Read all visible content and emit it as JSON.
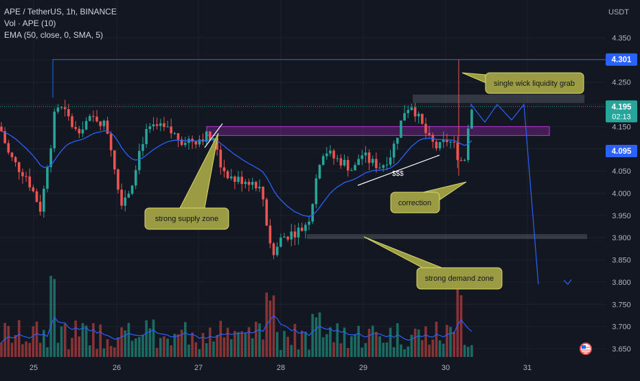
{
  "header": {
    "title": "APE / TetherUS, 1h, BINANCE",
    "indicator_volume": "Vol · APE (10)",
    "indicator_ema": "EMA (50, close, 0, SMA, 5)"
  },
  "price_axis": {
    "currency": "USDT",
    "ticks": [
      "4.350",
      "4.300",
      "4.250",
      "4.200",
      "4.150",
      "4.100",
      "4.050",
      "4.000",
      "3.950",
      "3.900",
      "3.850",
      "3.800",
      "3.750",
      "3.700",
      "3.650"
    ]
  },
  "time_axis": {
    "ticks": [
      "25",
      "26",
      "27",
      "28",
      "29",
      "30",
      "31"
    ]
  },
  "price_labels": {
    "high": "4.301",
    "last": "4.195",
    "countdown": "02:13",
    "ema": "4.095"
  },
  "annotations": {
    "wick": "single wick liquidity grab",
    "supply": "strong supply zone",
    "correction": "correction",
    "demand": "strong demand zone",
    "liquidity": "$$$"
  },
  "colors": {
    "background": "#131722",
    "bull": "#26a69a",
    "bear": "#ef5350",
    "ema": "#2962ff",
    "zone_supply": "#9c27b0",
    "callout": "#9b9b44"
  },
  "chart_data": {
    "type": "candlestick",
    "symbol": "APE / TetherUS",
    "timeframe": "1h",
    "exchange": "BINANCE",
    "ylim": [
      3.63,
      4.39
    ],
    "last_price": 4.195,
    "high_marker": 4.301,
    "ema_value": 4.095,
    "supply_zone": [
      4.13,
      4.15
    ],
    "demand_zone": [
      3.897,
      3.908
    ],
    "grab_zone": [
      4.203,
      4.222
    ],
    "projection": [
      {
        "t": 0,
        "price": 4.2
      },
      {
        "t": 1,
        "price": 4.16
      },
      {
        "t": 2,
        "price": 4.2
      },
      {
        "t": 3,
        "price": 4.165
      },
      {
        "t": 4,
        "price": 4.2
      },
      {
        "t": 5,
        "price": 3.795
      }
    ]
  }
}
